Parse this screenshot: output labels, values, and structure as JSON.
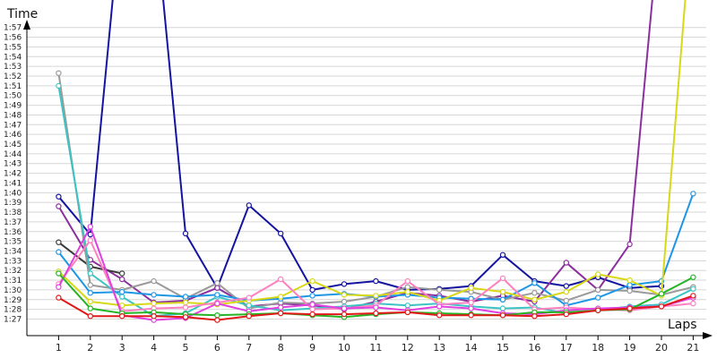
{
  "chart_data": {
    "type": "line",
    "xlabel": "Laps",
    "ylabel": "Time",
    "x": [
      1,
      2,
      3,
      4,
      5,
      6,
      7,
      8,
      9,
      10,
      11,
      12,
      13,
      14,
      15,
      16,
      17,
      18,
      19,
      20,
      21
    ],
    "x_ticks": [
      "1",
      "2",
      "3",
      "4",
      "5",
      "6",
      "7",
      "8",
      "9",
      "10",
      "11",
      "12",
      "13",
      "14",
      "15",
      "16",
      "17",
      "18",
      "19",
      "20",
      "21"
    ],
    "y_ticks": [
      "1:27",
      "1:28",
      "1:29",
      "1:30",
      "1:31",
      "1:32",
      "1:33",
      "1:34",
      "1:35",
      "1:36",
      "1:37",
      "1:38",
      "1:39",
      "1:40",
      "1:41",
      "1:42",
      "1:43",
      "1:44",
      "1:45",
      "1:46",
      "1:47",
      "1:48",
      "1:49",
      "1:50",
      "1:51",
      "1:52",
      "1:53",
      "1:54",
      "1:55",
      "1:56",
      "1:57"
    ],
    "y_unit": "seconds",
    "ylim": [
      86,
      119
    ],
    "xlim": [
      0,
      21
    ],
    "grid": true,
    "legend": "none",
    "series": [
      {
        "color": "#1414a0",
        "values": [
          99.6,
          95.7,
          130,
          130,
          95.8,
          90.2,
          98.7,
          95.8,
          90.0,
          90.6,
          90.9,
          90.0,
          90.1,
          90.4,
          93.6,
          90.9,
          90.4,
          91.3,
          90.2,
          90.4,
          null
        ]
      },
      {
        "color": "#8a2f9c",
        "values": [
          98.6,
          93.1,
          91.1,
          88.7,
          88.9,
          90.2,
          88.3,
          88.6,
          88.4,
          88.0,
          88.8,
          89.7,
          89.4,
          88.8,
          89.4,
          88.8,
          92.8,
          90.0,
          94.7,
          130,
          null
        ]
      },
      {
        "color": "#3a3a3a",
        "values": [
          94.9,
          92.4,
          91.7,
          null,
          null,
          null,
          null,
          null,
          null,
          null,
          null,
          null,
          null,
          null,
          null,
          null,
          null,
          null,
          null,
          null,
          null
        ]
      },
      {
        "color": "#9a9a9a",
        "values": [
          112.3,
          90.5,
          90.0,
          90.9,
          89.1,
          90.7,
          88.1,
          88.7,
          88.6,
          88.8,
          89.3,
          90.3,
          90.0,
          89.8,
          89.0,
          89.7,
          88.9,
          90.0,
          89.9,
          89.5,
          90.3
        ]
      },
      {
        "color": "#3cc4c4",
        "values": [
          111.0,
          91.7,
          89.3,
          87.3,
          87.6,
          89.3,
          88.4,
          87.9,
          88.1,
          88.3,
          88.6,
          88.4,
          88.6,
          88.3,
          88.1,
          88.2,
          87.6,
          87.9,
          88.3,
          88.5,
          90.1
        ]
      },
      {
        "color": "#1e96e6",
        "values": [
          93.9,
          89.7,
          89.8,
          89.5,
          89.3,
          89.5,
          88.9,
          89.1,
          89.4,
          89.6,
          89.3,
          89.5,
          89.2,
          89.1,
          89.0,
          90.7,
          88.4,
          89.2,
          90.5,
          90.9,
          99.9
        ]
      },
      {
        "color": "#d8d818",
        "values": [
          91.9,
          88.8,
          88.4,
          88.6,
          88.7,
          88.5,
          88.9,
          89.3,
          90.9,
          89.5,
          89.4,
          89.8,
          88.9,
          90.2,
          89.8,
          89.0,
          89.8,
          91.6,
          91.0,
          89.4,
          130
        ]
      },
      {
        "color": "#ff80c0",
        "values": [
          90.6,
          95.1,
          87.8,
          88.1,
          88.2,
          88.7,
          89.2,
          91.1,
          88.0,
          88.1,
          88.4,
          90.9,
          88.5,
          88.7,
          91.2,
          88.0,
          88.2,
          88.0,
          87.9,
          88.3,
          88.6
        ]
      },
      {
        "color": "#e040e0",
        "values": [
          90.3,
          96.5,
          87.4,
          86.9,
          87.1,
          88.6,
          87.8,
          88.2,
          88.5,
          88.1,
          88.2,
          87.9,
          88.3,
          88.1,
          87.6,
          87.5,
          87.9,
          88.1,
          88.2,
          88.3,
          89.2
        ]
      },
      {
        "color": "#24b424",
        "values": [
          91.7,
          88.1,
          87.6,
          87.7,
          87.5,
          87.4,
          87.5,
          87.6,
          87.4,
          87.2,
          87.5,
          87.7,
          87.6,
          87.5,
          87.4,
          87.7,
          87.7,
          87.9,
          88.0,
          89.6,
          91.3
        ]
      },
      {
        "color": "#e01818",
        "values": [
          89.2,
          87.3,
          87.3,
          87.3,
          87.2,
          86.9,
          87.3,
          87.6,
          87.5,
          87.5,
          87.6,
          87.7,
          87.4,
          87.4,
          87.4,
          87.3,
          87.5,
          87.9,
          88.1,
          88.3,
          89.4
        ]
      }
    ]
  }
}
